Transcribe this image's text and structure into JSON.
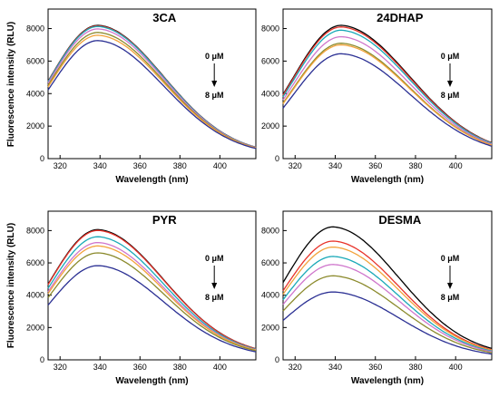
{
  "figure": {
    "y_axis_label": "Fluorescence intensity (RLU)"
  },
  "chart_data": [
    {
      "type": "line",
      "title": "3CA",
      "xlabel": "Wavelength (nm)",
      "ylabel": "Fluorescence intensity (RLU)",
      "xlim": [
        314,
        418
      ],
      "ylim": [
        0,
        9200
      ],
      "x_ticks": [
        320,
        340,
        360,
        380,
        400
      ],
      "y_ticks": [
        0,
        2000,
        4000,
        6000,
        8000
      ],
      "annotation": {
        "top": "0 μM",
        "bottom": "8 μM"
      },
      "series": [
        {
          "color": "#000000",
          "peak": 8200
        },
        {
          "color": "#e8332a",
          "peak": 8170
        },
        {
          "color": "#1aa9b8",
          "peak": 8130
        },
        {
          "color": "#cf76cc",
          "peak": 7980
        },
        {
          "color": "#8b8a2c",
          "peak": 7760
        },
        {
          "color": "#f3a33b",
          "peak": 7590
        },
        {
          "color": "#2a2f93",
          "peak": 7260
        }
      ],
      "red_shift": 0,
      "tail_factor": 1.0
    },
    {
      "type": "line",
      "title": "24DHAP",
      "xlabel": "Wavelength (nm)",
      "ylabel": "",
      "xlim": [
        314,
        418
      ],
      "ylim": [
        0,
        9200
      ],
      "x_ticks": [
        320,
        340,
        360,
        380,
        400
      ],
      "y_ticks": [
        0,
        2000,
        4000,
        6000,
        8000
      ],
      "annotation": {
        "top": "0 μM",
        "bottom": "8 μM"
      },
      "series": [
        {
          "color": "#000000",
          "peak": 8200
        },
        {
          "color": "#e8332a",
          "peak": 8100
        },
        {
          "color": "#1aa9b8",
          "peak": 7900
        },
        {
          "color": "#cf76cc",
          "peak": 7500
        },
        {
          "color": "#8b8a2c",
          "peak": 7100
        },
        {
          "color": "#f3a33b",
          "peak": 7000
        },
        {
          "color": "#2a2f93",
          "peak": 6450
        }
      ],
      "red_shift": 4,
      "tail_factor": 1.08
    },
    {
      "type": "line",
      "title": "PYR",
      "xlabel": "Wavelength (nm)",
      "ylabel": "Fluorescence intensity (RLU)",
      "xlim": [
        314,
        418
      ],
      "ylim": [
        0,
        9200
      ],
      "x_ticks": [
        320,
        340,
        360,
        380,
        400
      ],
      "y_ticks": [
        0,
        2000,
        4000,
        6000,
        8000
      ],
      "annotation": {
        "top": "0 μM",
        "bottom": "8 μM"
      },
      "series": [
        {
          "color": "#000000",
          "peak": 8060
        },
        {
          "color": "#e8332a",
          "peak": 8010
        },
        {
          "color": "#1aa9b8",
          "peak": 7620
        },
        {
          "color": "#cf76cc",
          "peak": 7260
        },
        {
          "color": "#f3a33b",
          "peak": 7050
        },
        {
          "color": "#8b8a2c",
          "peak": 6620
        },
        {
          "color": "#2a2f93",
          "peak": 5830
        }
      ],
      "red_shift": 0,
      "tail_factor": 1.0
    },
    {
      "type": "line",
      "title": "DESMA",
      "xlabel": "Wavelength (nm)",
      "ylabel": "",
      "xlim": [
        314,
        418
      ],
      "ylim": [
        0,
        9200
      ],
      "x_ticks": [
        320,
        340,
        360,
        380,
        400
      ],
      "y_ticks": [
        0,
        2000,
        4000,
        6000,
        8000
      ],
      "annotation": {
        "top": "0 μM",
        "bottom": "8 μM"
      },
      "series": [
        {
          "color": "#000000",
          "peak": 8230
        },
        {
          "color": "#e8332a",
          "peak": 7350
        },
        {
          "color": "#f3a33b",
          "peak": 6980
        },
        {
          "color": "#1aa9b8",
          "peak": 6400
        },
        {
          "color": "#cf76cc",
          "peak": 5900
        },
        {
          "color": "#8b8a2c",
          "peak": 5200
        },
        {
          "color": "#2a2f93",
          "peak": 4200
        }
      ],
      "red_shift": 0,
      "tail_factor": 1.0
    }
  ]
}
